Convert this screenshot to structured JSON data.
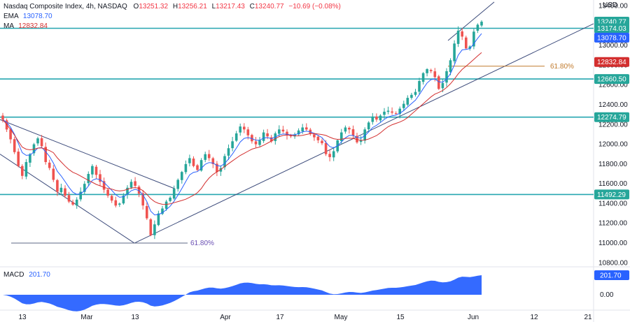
{
  "header": {
    "title": "Nasdaq Composite Index, 4h, NASDAQ",
    "ohlc": [
      {
        "key": "O",
        "value": "13251.32"
      },
      {
        "key": "H",
        "value": "13256.21"
      },
      {
        "key": "L",
        "value": "13217.43"
      },
      {
        "key": "C",
        "value": "13240.77"
      }
    ],
    "change": "−10.69 (−0.08%)",
    "ema_label": "EMA",
    "ema_value": "13078.70",
    "ma_label": "MA",
    "ma_value": "12832.84"
  },
  "macd": {
    "label": "MACD",
    "value": "201.70"
  },
  "currency": "USD",
  "colors": {
    "up": "#26a69a",
    "down": "#ef5350",
    "ema": "#2962ff",
    "ma": "#d32f2f",
    "support_line": "#26a6b0",
    "trendline": "#3b4a7a",
    "fib_upper": "#c07a2c",
    "fib_lower": "#6a4fb3",
    "macd_fill": "#2962ff"
  },
  "price_tags": [
    {
      "value": "13240.77",
      "color": "#26a69a"
    },
    {
      "value": "13174.03",
      "color": "#26a69a"
    },
    {
      "value": "13078.70",
      "color": "#2962ff"
    },
    {
      "value": "12832.84",
      "color": "#d32f2f"
    },
    {
      "value": "12660.50",
      "color": "#26a69a"
    },
    {
      "value": "12274.79",
      "color": "#26a69a"
    },
    {
      "value": "11492.29",
      "color": "#26a69a"
    }
  ],
  "macd_tag": "201.70",
  "macd_axis_label": "0.00",
  "fib_labels": {
    "upper": "61.80%",
    "lower": "61.80%"
  },
  "chart_data": {
    "type": "candlestick",
    "title": "Nasdaq Composite Index, 4h, NASDAQ",
    "y_axis_labels": [
      "13400.00",
      "13000.00",
      "12800.00",
      "12600.00",
      "12400.00",
      "12200.00",
      "12000.00",
      "11800.00",
      "11600.00",
      "11400.00",
      "11200.00",
      "11000.00",
      "10800.00"
    ],
    "x_axis_labels": [
      "13",
      "Mar",
      "13",
      "Apr",
      "17",
      "May",
      "15",
      "Jun",
      "12",
      "21"
    ],
    "ylim": [
      10760,
      13460
    ],
    "horizontal_levels": [
      13174.03,
      12660.5,
      12274.79,
      11492.29
    ],
    "fib_levels": [
      12790,
      11000
    ],
    "close_series": [
      12250,
      12150,
      12050,
      11920,
      11780,
      11680,
      11820,
      11900,
      12000,
      12060,
      11980,
      11820,
      11760,
      11640,
      11520,
      11560,
      11480,
      11420,
      11390,
      11440,
      11520,
      11600,
      11700,
      11780,
      11690,
      11620,
      11540,
      11480,
      11430,
      11380,
      11400,
      11480,
      11560,
      11620,
      11580,
      11500,
      11380,
      11250,
      11080,
      11190,
      11300,
      11350,
      11420,
      11460,
      11550,
      11640,
      11720,
      11800,
      11860,
      11780,
      11740,
      11840,
      11900,
      11860,
      11800,
      11720,
      11760,
      11880,
      11960,
      12030,
      12110,
      12180,
      12150,
      12090,
      12030,
      12000,
      12040,
      12120,
      12080,
      12030,
      12110,
      12150,
      12130,
      12090,
      12080,
      12100,
      12140,
      12170,
      12150,
      12110,
      12070,
      12040,
      12010,
      11900,
      11870,
      11930,
      12040,
      12120,
      12170,
      12150,
      12090,
      12020,
      12040,
      12150,
      12220,
      12280,
      12250,
      12290,
      12330,
      12340,
      12320,
      12310,
      12360,
      12410,
      12470,
      12500,
      12530,
      12640,
      12720,
      12760,
      12740,
      12680,
      12560,
      12620,
      12740,
      12850,
      13020,
      13150,
      13090,
      12970,
      12990,
      13140,
      13210,
      13240
    ]
  }
}
